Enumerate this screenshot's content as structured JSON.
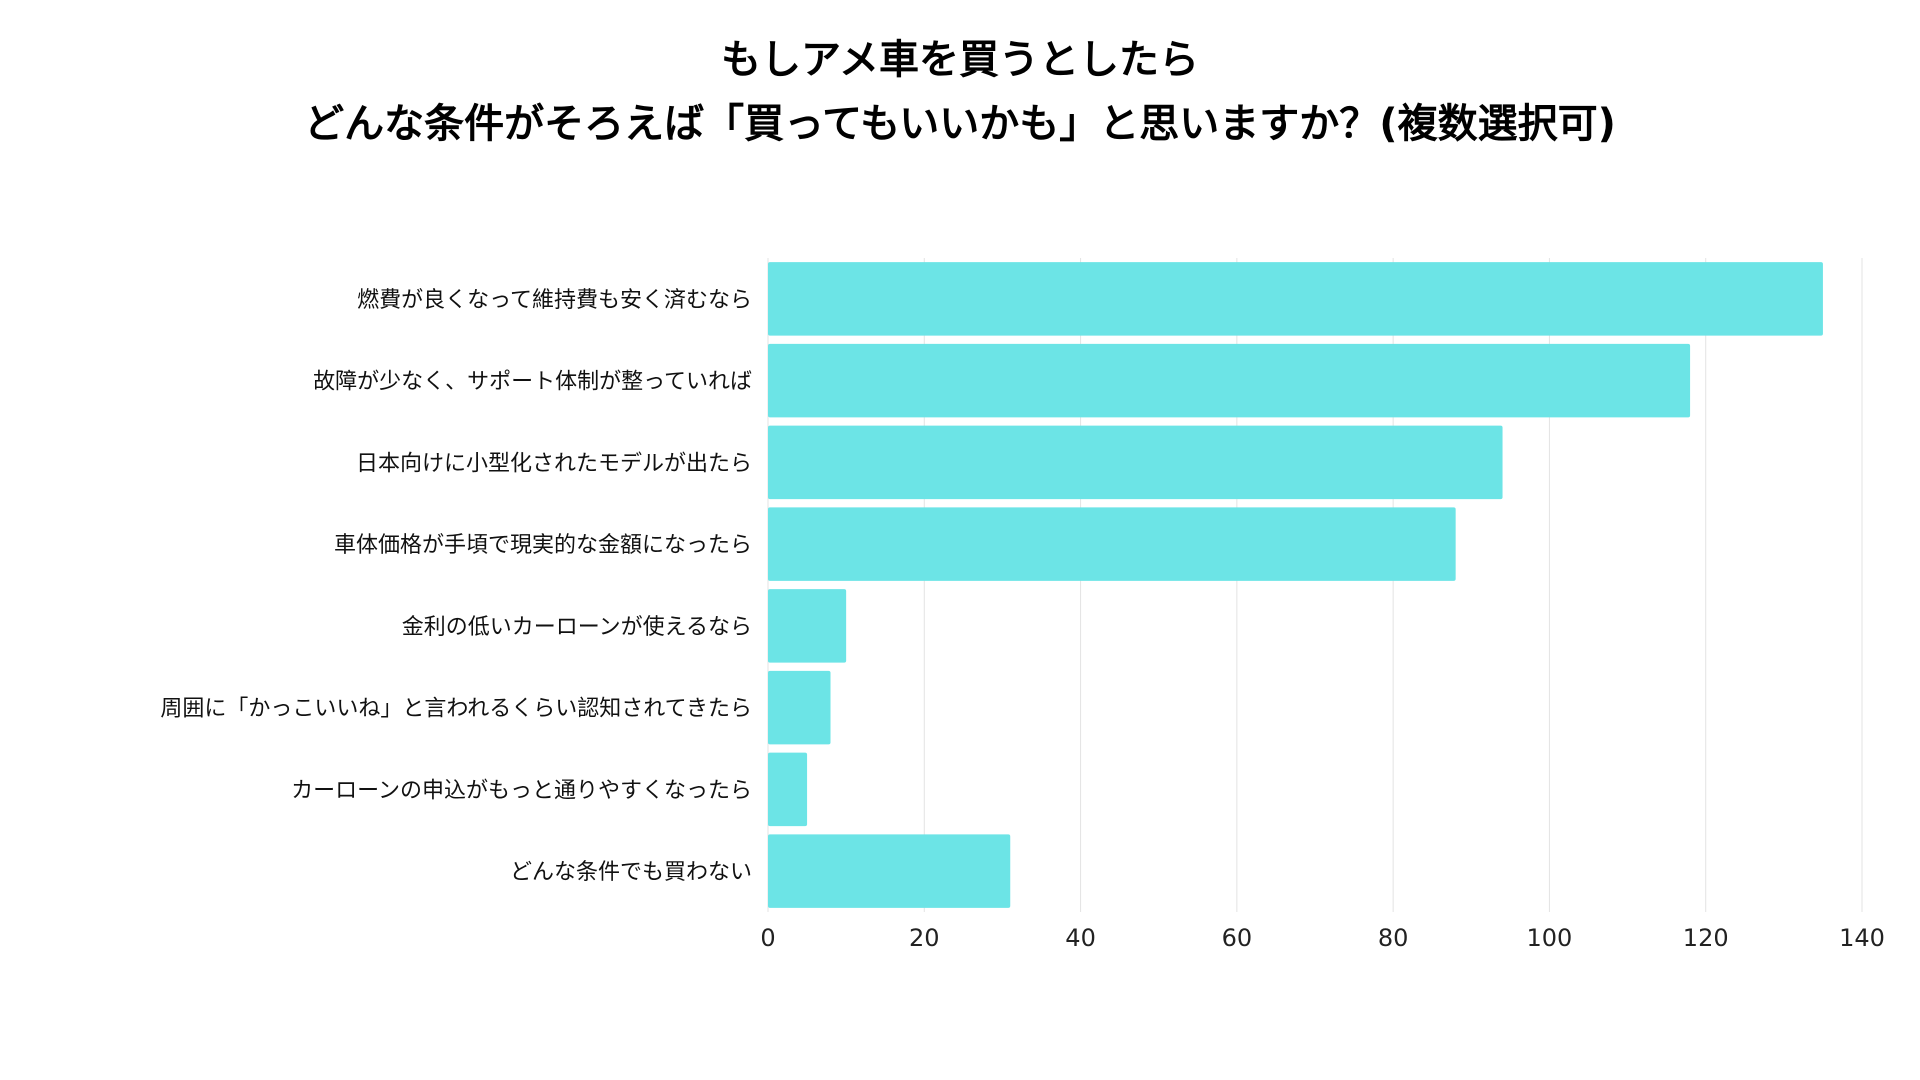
{
  "chart_data": {
    "type": "bar",
    "orientation": "horizontal",
    "title": "もしアメ車を買うとしたら",
    "subtitle": "どんな条件がそろえば「買ってもいいかも」と思いますか？(複数選択可)",
    "categories": [
      "燃費が良くなって維持費も安く済むなら",
      "故障が少なく、サポート体制が整っていれば",
      "日本向けに小型化されたモデルが出たら",
      "車体価格が手頃で現実的な金額になったら",
      "金利の低いカーローンが使えるなら",
      "周囲に「かっこいいね」と言われるくらい認知されてきたら",
      "カーローンの申込がもっと通りやすくなったら",
      "どんな条件でも買わない"
    ],
    "values": [
      135,
      118,
      94,
      88,
      10,
      8,
      5,
      31
    ],
    "xlim": [
      0,
      140
    ],
    "xticks": [
      "0",
      "20",
      "40",
      "60",
      "80",
      "100",
      "120",
      "140"
    ],
    "xlabel": "",
    "ylabel": "",
    "grid": "vertical",
    "legend": "none",
    "bar_color": "#6ce4e6",
    "grid_color": "#e3e3e3"
  }
}
